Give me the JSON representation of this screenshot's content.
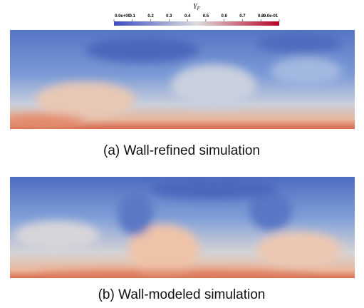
{
  "colorbar": {
    "label": "Y",
    "label_sub": "F",
    "ticks": [
      "0.0e+00",
      "0.1",
      "0.2",
      "0.3",
      "0.4",
      "0.5",
      "0.6",
      "0.7",
      "0.8",
      "9.0e-01"
    ]
  },
  "panels": [
    {
      "caption": "(a) Wall-refined simulation"
    },
    {
      "caption": "(b) Wall-modeled simulation"
    }
  ]
}
